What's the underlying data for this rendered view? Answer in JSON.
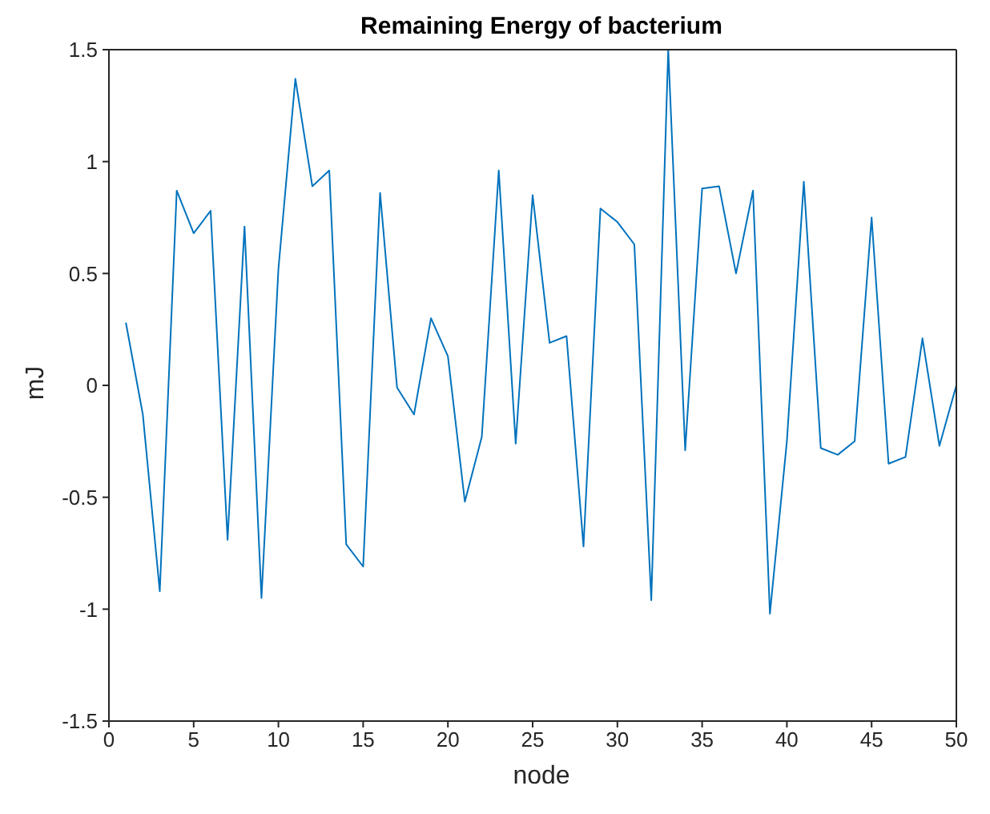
{
  "chart_data": {
    "type": "line",
    "title": "Remaining Energy of bacterium",
    "xlabel": "node",
    "ylabel": "mJ",
    "x": [
      1,
      2,
      3,
      4,
      5,
      6,
      7,
      8,
      9,
      10,
      11,
      12,
      13,
      14,
      15,
      16,
      17,
      18,
      19,
      20,
      21,
      22,
      23,
      24,
      25,
      26,
      27,
      28,
      29,
      30,
      31,
      32,
      33,
      34,
      35,
      36,
      37,
      38,
      39,
      40,
      41,
      42,
      43,
      44,
      45,
      46,
      47,
      48,
      49,
      50
    ],
    "series": [
      {
        "color": "#0072bd",
        "values": [
          0.28,
          -0.13,
          -0.92,
          0.87,
          0.68,
          0.78,
          -0.69,
          0.71,
          -0.95,
          0.52,
          1.37,
          0.89,
          0.96,
          -0.71,
          -0.81,
          0.86,
          -0.01,
          -0.13,
          0.3,
          0.13,
          -0.52,
          -0.23,
          0.96,
          -0.26,
          0.85,
          0.19,
          0.22,
          -0.72,
          0.79,
          0.73,
          0.63,
          -0.96,
          1.5,
          -0.29,
          0.88,
          0.89,
          0.5,
          0.87,
          -1.02,
          -0.25,
          0.91,
          -0.28,
          -0.31,
          -0.25,
          0.75,
          -0.35,
          -0.32,
          0.21,
          -0.27,
          0.0
        ]
      }
    ],
    "xlim": [
      0,
      50
    ],
    "xticks": [
      0,
      5,
      10,
      15,
      20,
      25,
      30,
      35,
      40,
      45,
      50
    ],
    "ylim": [
      -1.5,
      1.5
    ],
    "yticks": [
      -1.5,
      -1,
      -0.5,
      0,
      0.5,
      1,
      1.5
    ],
    "grid": false,
    "legend": false,
    "marker": "none",
    "line_style": "solid"
  }
}
